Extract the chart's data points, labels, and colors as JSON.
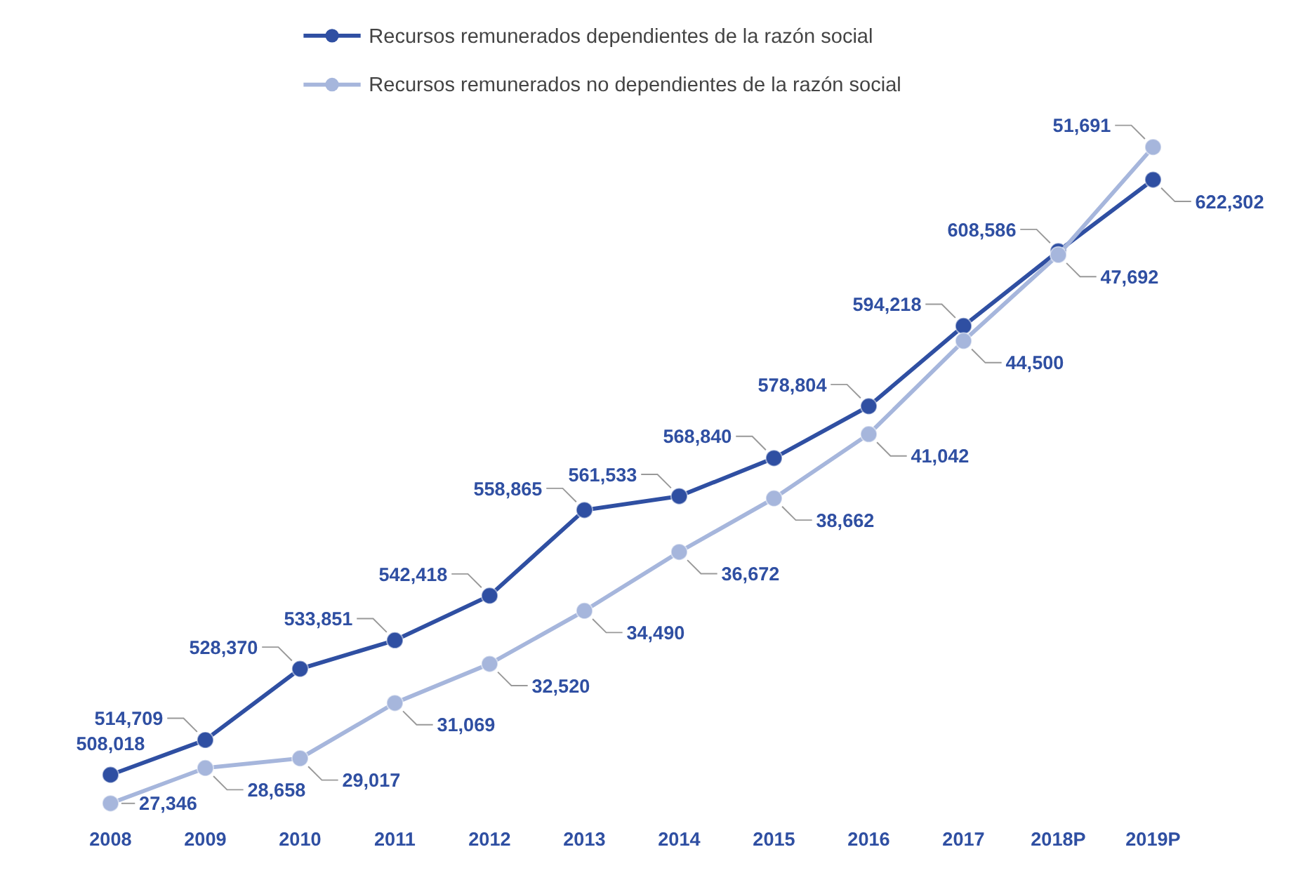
{
  "chart_data": {
    "type": "line",
    "categories": [
      "2008",
      "2009",
      "2010",
      "2011",
      "2012",
      "2013",
      "2014",
      "2015",
      "2016",
      "2017",
      "2018P",
      "2019P"
    ],
    "series": [
      {
        "name": "Recursos remunerados dependientes de la razón social",
        "color": "#2f4fa2",
        "values": [
          508018,
          514709,
          528370,
          533851,
          542418,
          558865,
          561533,
          568840,
          578804,
          594218,
          608586,
          622302
        ],
        "value_labels": [
          "508,018",
          "514,709",
          "528,370",
          "533,851",
          "542,418",
          "558,865",
          "561,533",
          "568,840",
          "578,804",
          "594,218",
          "608,586",
          "622,302"
        ]
      },
      {
        "name": "Recursos remunerados no dependientes de la razón social",
        "color": "#a6b6dc",
        "axis": "y2",
        "values": [
          27346,
          28658,
          29017,
          31069,
          32520,
          34490,
          36672,
          38662,
          41042,
          44500,
          47692,
          51691
        ],
        "value_labels": [
          "27,346",
          "28,658",
          "29,017",
          "31,069",
          "32,520",
          "34,490",
          "36,672",
          "38,662",
          "41,042",
          "44,500",
          "47,692",
          "51,691"
        ]
      }
    ],
    "tick_labels": "x",
    "legend": "top",
    "marker": "circle",
    "line_style": "solid"
  }
}
